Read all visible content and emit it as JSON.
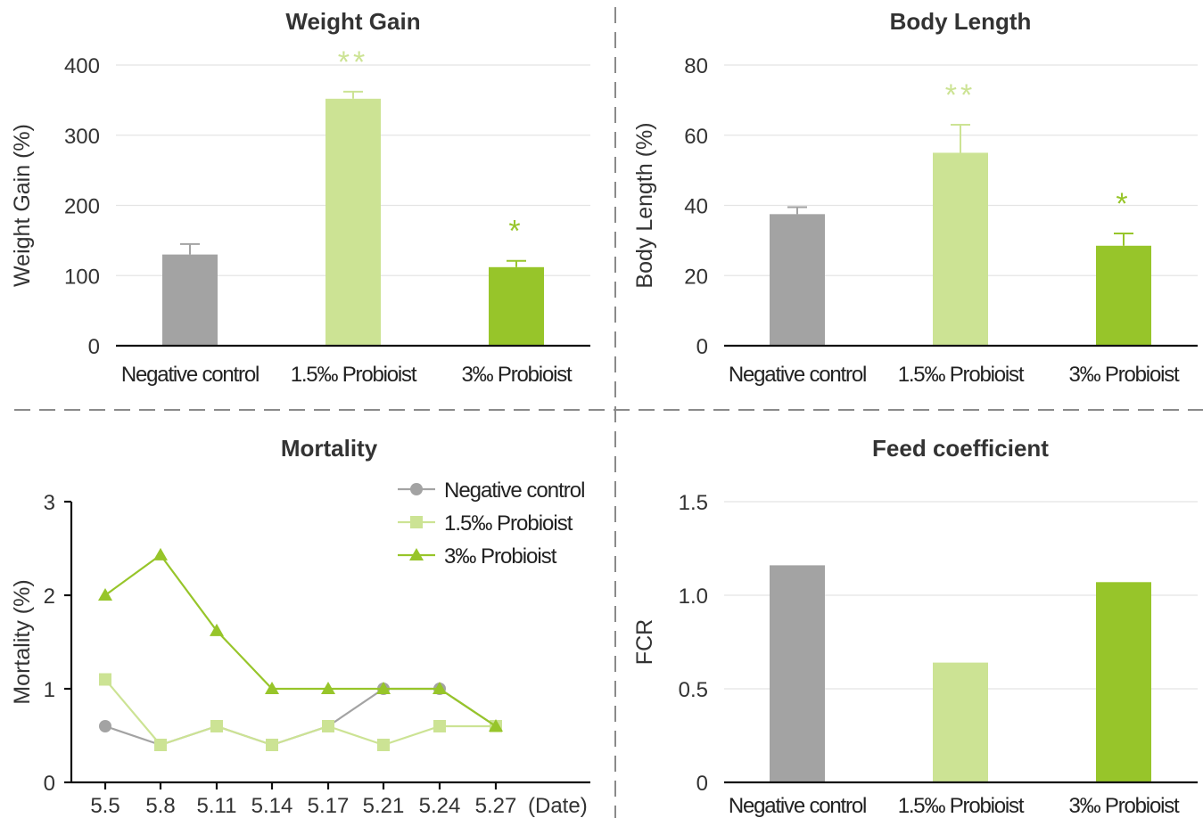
{
  "colors": {
    "negative": "#a3a3a3",
    "probiotic15": "#cce394",
    "probiotic3": "#97c52a",
    "axis": "#111111",
    "grid": "#e4e4e4",
    "divider": "#8a8a8a"
  },
  "chart_data": [
    {
      "id": "weight-gain",
      "type": "bar",
      "title": "Weight Gain",
      "ylabel": "Weight Gain (%)",
      "xlabel": "",
      "ylim": [
        0,
        400
      ],
      "yticks": [
        0,
        100,
        200,
        300,
        400
      ],
      "grid": true,
      "categories": [
        "Negative control",
        "1.5‰ Probioist",
        "3‰ Probioist"
      ],
      "values": [
        130,
        352,
        112
      ],
      "errors": [
        15,
        10,
        9
      ],
      "annotations": [
        "",
        "**",
        "*"
      ]
    },
    {
      "id": "body-length",
      "type": "bar",
      "title": "Body Length",
      "ylabel": "Body Length (%)",
      "xlabel": "",
      "ylim": [
        0,
        80
      ],
      "yticks": [
        0,
        20,
        40,
        60,
        80
      ],
      "grid": true,
      "categories": [
        "Negative control",
        "1.5‰ Probioist",
        "3‰ Probioist"
      ],
      "values": [
        37.5,
        55,
        28.5
      ],
      "errors": [
        2,
        8,
        3.5
      ],
      "annotations": [
        "",
        "**",
        "*"
      ]
    },
    {
      "id": "mortality",
      "type": "line",
      "title": "Mortality",
      "ylabel": "Mortality (%)",
      "xlabel": "(Date)",
      "ylim": [
        0,
        3
      ],
      "yticks": [
        0,
        1,
        2,
        3
      ],
      "grid": false,
      "legend_position": "top-right",
      "x": [
        "5.5",
        "5.8",
        "5.11",
        "5.14",
        "5.17",
        "5.21",
        "5.24",
        "5.27"
      ],
      "series": [
        {
          "name": "Negative control",
          "marker": "circle",
          "values": [
            0.6,
            0.4,
            0.6,
            0.4,
            0.6,
            1.0,
            1.0,
            0.6
          ]
        },
        {
          "name": "1.5‰ Probioist",
          "marker": "square",
          "values": [
            1.1,
            0.4,
            0.6,
            0.4,
            0.6,
            0.4,
            0.6,
            0.6
          ]
        },
        {
          "name": "3‰ Probioist",
          "marker": "triangle",
          "values": [
            2.0,
            2.43,
            1.62,
            1.0,
            1.0,
            1.0,
            1.0,
            0.6
          ]
        }
      ]
    },
    {
      "id": "feed-coefficient",
      "type": "bar",
      "title": "Feed coefficient",
      "ylabel": "FCR",
      "xlabel": "",
      "ylim": [
        0,
        1.5
      ],
      "yticks": [
        "0",
        "0.5",
        "1.0",
        "1.5"
      ],
      "grid": true,
      "categories": [
        "Negative control",
        "1.5‰ Probioist",
        "3‰ Probioist"
      ],
      "values": [
        1.16,
        0.64,
        1.07
      ]
    }
  ]
}
